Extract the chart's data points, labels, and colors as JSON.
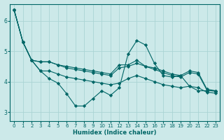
{
  "xlabel": "Humidex (Indice chaleur)",
  "xlim": [
    -0.5,
    23.5
  ],
  "ylim": [
    2.7,
    6.55
  ],
  "yticks": [
    3,
    4,
    5,
    6
  ],
  "xticks": [
    0,
    1,
    2,
    3,
    4,
    5,
    6,
    7,
    8,
    9,
    10,
    11,
    12,
    13,
    14,
    15,
    16,
    17,
    18,
    19,
    20,
    21,
    22,
    23
  ],
  "background_color": "#cce9e9",
  "grid_color": "#aad4d4",
  "line_color": "#006666",
  "lines": [
    {
      "x": [
        0,
        1,
        2,
        3,
        4,
        5,
        6,
        7,
        8,
        9,
        10,
        11,
        12,
        13,
        14,
        15,
        16,
        17,
        18,
        19,
        20,
        21,
        22,
        23
      ],
      "y": [
        6.35,
        5.3,
        4.7,
        4.35,
        4.1,
        3.95,
        3.6,
        3.2,
        3.2,
        3.45,
        3.7,
        3.55,
        3.8,
        4.9,
        5.35,
        5.2,
        4.6,
        4.2,
        4.15,
        4.2,
        3.85,
        3.7,
        3.7,
        3.7
      ]
    },
    {
      "x": [
        0,
        1,
        2,
        3,
        4,
        5,
        6,
        7,
        8,
        9,
        10,
        11,
        12,
        13,
        14,
        15,
        16,
        17,
        18,
        19,
        20,
        21,
        22,
        23
      ],
      "y": [
        6.35,
        5.3,
        4.7,
        4.65,
        4.65,
        4.55,
        4.5,
        4.45,
        4.4,
        4.35,
        4.3,
        4.25,
        4.55,
        4.55,
        4.7,
        4.5,
        4.45,
        4.35,
        4.25,
        4.2,
        4.35,
        4.3,
        3.75,
        3.7
      ]
    },
    {
      "x": [
        0,
        1,
        2,
        3,
        4,
        5,
        6,
        7,
        8,
        9,
        10,
        11,
        12,
        13,
        14,
        15,
        16,
        17,
        18,
        19,
        20,
        21,
        22,
        23
      ],
      "y": [
        6.35,
        5.3,
        4.7,
        4.65,
        4.65,
        4.55,
        4.45,
        4.4,
        4.35,
        4.3,
        4.25,
        4.2,
        4.45,
        4.5,
        4.6,
        4.5,
        4.4,
        4.3,
        4.2,
        4.15,
        4.3,
        4.25,
        3.72,
        3.68
      ]
    },
    {
      "x": [
        0,
        1,
        2,
        3,
        4,
        5,
        6,
        7,
        8,
        9,
        10,
        11,
        12,
        13,
        14,
        15,
        16,
        17,
        18,
        19,
        20,
        21,
        22,
        23
      ],
      "y": [
        6.35,
        5.3,
        4.7,
        4.35,
        4.35,
        4.25,
        4.15,
        4.1,
        4.05,
        4.0,
        3.95,
        3.9,
        3.95,
        4.1,
        4.2,
        4.1,
        4.0,
        3.9,
        3.85,
        3.8,
        3.85,
        3.8,
        3.65,
        3.62
      ]
    }
  ]
}
